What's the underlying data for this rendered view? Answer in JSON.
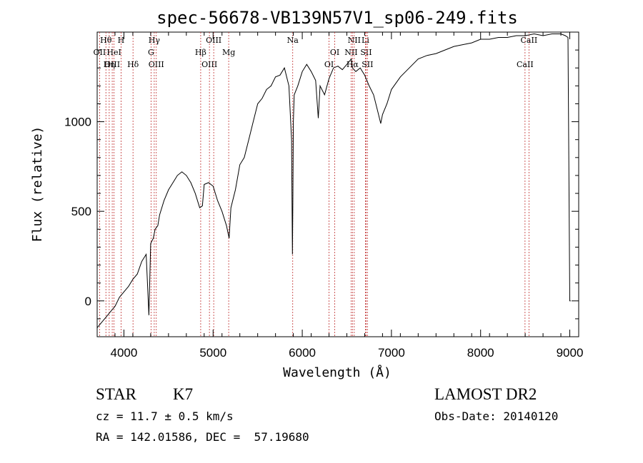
{
  "info": {
    "object_class": "STAR",
    "subclass": "K7",
    "redshift": "cz = 11.7 ± 0.5 km/s",
    "coords": "RA = 142.01586, DEC =  57.19680",
    "survey": "LAMOST DR2",
    "obs_date": "Obs-Date: 20140120"
  },
  "chart_data": {
    "type": "line",
    "title": "spec-56678-VB139N57V1_sp06-249.fits",
    "xlabel": "Wavelength (Å)",
    "ylabel": "Flux (relative)",
    "xlim": [
      3700,
      9100
    ],
    "ylim": [
      -200,
      1500
    ],
    "xticks": [
      4000,
      5000,
      6000,
      7000,
      8000,
      9000
    ],
    "yticks": [
      0,
      500,
      1000
    ],
    "grid": false,
    "legend": "none",
    "series": [
      {
        "x": [
          3700,
          3750,
          3800,
          3850,
          3900,
          3950,
          4000,
          4050,
          4100,
          4150,
          4200,
          4250,
          4280,
          4300,
          4330,
          4350,
          4380,
          4400,
          4450,
          4500,
          4550,
          4600,
          4650,
          4700,
          4750,
          4800,
          4850,
          4880,
          4900,
          4950,
          5000,
          5050,
          5100,
          5150,
          5180,
          5200,
          5250,
          5300,
          5350,
          5400,
          5450,
          5500,
          5550,
          5600,
          5650,
          5700,
          5750,
          5800,
          5850,
          5880,
          5890,
          5895,
          5900,
          5910,
          5950,
          6000,
          6050,
          6100,
          6150,
          6180,
          6200,
          6250,
          6300,
          6350,
          6400,
          6450,
          6500,
          6550,
          6563,
          6600,
          6650,
          6700,
          6750,
          6800,
          6850,
          6880,
          6900,
          6950,
          7000,
          7100,
          7200,
          7300,
          7400,
          7500,
          7600,
          7700,
          7800,
          7900,
          8000,
          8100,
          8200,
          8300,
          8400,
          8500,
          8600,
          8700,
          8800,
          8900,
          8950,
          8980,
          9000,
          9010
        ],
        "y": [
          -150,
          -120,
          -90,
          -60,
          -30,
          20,
          50,
          80,
          120,
          150,
          220,
          260,
          -80,
          320,
          350,
          400,
          420,
          480,
          560,
          620,
          660,
          700,
          720,
          700,
          660,
          600,
          520,
          530,
          650,
          660,
          640,
          560,
          500,
          420,
          350,
          520,
          620,
          760,
          800,
          900,
          1000,
          1100,
          1130,
          1180,
          1200,
          1250,
          1260,
          1300,
          1200,
          900,
          260,
          600,
          1000,
          1150,
          1200,
          1280,
          1320,
          1280,
          1230,
          1020,
          1200,
          1150,
          1240,
          1300,
          1310,
          1290,
          1320,
          1350,
          1300,
          1280,
          1300,
          1260,
          1200,
          1150,
          1050,
          990,
          1040,
          1100,
          1180,
          1250,
          1300,
          1350,
          1370,
          1380,
          1400,
          1420,
          1430,
          1440,
          1460,
          1460,
          1470,
          1470,
          1480,
          1480,
          1490,
          1480,
          1490,
          1490,
          1480,
          1470,
          0,
          0
        ]
      }
    ],
    "lines": [
      {
        "name": "Hθ",
        "wl": 3798,
        "row": 0
      },
      {
        "name": "OII",
        "wl": 3727,
        "row": 1
      },
      {
        "name": "OIII",
        "wl": 3869,
        "row": 2
      },
      {
        "name": "H",
        "wl": 3968,
        "row": 0
      },
      {
        "name": "HeI",
        "wl": 3889,
        "row": 1
      },
      {
        "name": "Hη",
        "wl": 3835,
        "row": 2
      },
      {
        "name": "Hδ",
        "wl": 4102,
        "row": 2
      },
      {
        "name": "Hγ",
        "wl": 4340,
        "row": 0
      },
      {
        "name": "G",
        "wl": 4304,
        "row": 1
      },
      {
        "name": "OIII",
        "wl": 4363,
        "row": 2
      },
      {
        "name": "OIII",
        "wl": 5007,
        "row": 0
      },
      {
        "name": "Hβ",
        "wl": 4861,
        "row": 1
      },
      {
        "name": "OIII",
        "wl": 4959,
        "row": 2
      },
      {
        "name": "Mg",
        "wl": 5175,
        "row": 1
      },
      {
        "name": "Na",
        "wl": 5893,
        "row": 0
      },
      {
        "name": "OI",
        "wl": 6364,
        "row": 1
      },
      {
        "name": "OI",
        "wl": 6300,
        "row": 2
      },
      {
        "name": "NII",
        "wl": 6583,
        "row": 0
      },
      {
        "name": "NII",
        "wl": 6548,
        "row": 1
      },
      {
        "name": "Hα",
        "wl": 6563,
        "row": 2
      },
      {
        "name": "Li",
        "wl": 6708,
        "row": 0
      },
      {
        "name": "SII",
        "wl": 6716,
        "row": 1
      },
      {
        "name": "SII",
        "wl": 6731,
        "row": 2
      },
      {
        "name": "CaII",
        "wl": 8542,
        "row": 0
      },
      {
        "name": "CaII",
        "wl": 8498,
        "row": 2
      }
    ]
  }
}
